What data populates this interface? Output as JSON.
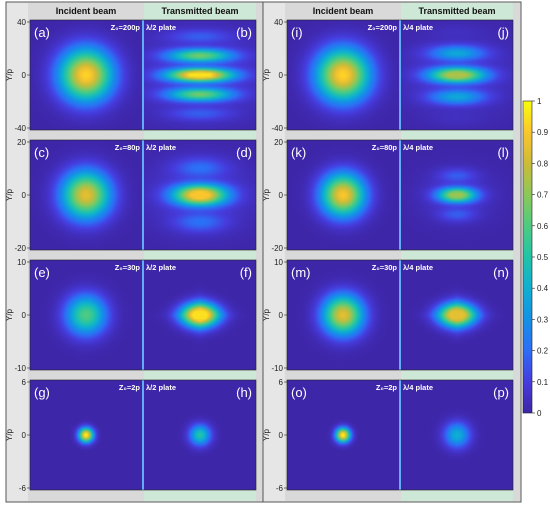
{
  "chart_data": {
    "type": "heatmap",
    "column_headers": [
      "Incident beam",
      "Transmitted beam",
      "Incident beam",
      "Transmitted beam"
    ],
    "ylabel": "Y/p",
    "colorbar": {
      "range": [
        0,
        1
      ],
      "ticks": [
        "0",
        "0.1",
        "0.2",
        "0.3",
        "0.4",
        "0.5",
        "0.6",
        "0.7",
        "0.8",
        "0.9",
        "1"
      ],
      "colormap": "parula"
    },
    "groups": [
      {
        "plate": "λ/2 plate",
        "rows": [
          {
            "z": "Z₀=200p",
            "plate_label": "λ/2 plate",
            "panels": [
              "(a)",
              "(b)"
            ],
            "y_ticks": [
              "40",
              "0",
              "-40"
            ],
            "y_range": [
              -40,
              40
            ],
            "incident": {
              "peak": 0.93,
              "width": 0.33
            },
            "transmitted": {
              "peak": 0.95,
              "pattern": "fringes",
              "width": 0.34,
              "lobes": 4
            }
          },
          {
            "z": "Z₀=80p",
            "plate_label": "λ/2 plate",
            "panels": [
              "(c)",
              "(d)"
            ],
            "y_ticks": [
              "20",
              "0",
              "-20"
            ],
            "y_range": [
              -20,
              20
            ],
            "incident": {
              "peak": 0.85,
              "width": 0.3
            },
            "transmitted": {
              "peak": 0.9,
              "pattern": "fringes",
              "width": 0.28,
              "lobes": 2
            }
          },
          {
            "z": "Z₀=30p",
            "plate_label": "λ/2 plate",
            "panels": [
              "(e)",
              "(f)"
            ],
            "y_ticks": [
              "10",
              "0",
              "-10"
            ],
            "y_range": [
              -15,
              15
            ],
            "incident": {
              "peak": 0.6,
              "width": 0.25
            },
            "transmitted": {
              "peak": 0.95,
              "pattern": "diamond",
              "width": 0.16
            }
          },
          {
            "z": "Z₀=2p",
            "plate_label": "λ/2 plate",
            "panels": [
              "(g)",
              "(h)"
            ],
            "y_ticks": [
              "6",
              "0",
              "-6"
            ],
            "y_range": [
              -6,
              6
            ],
            "incident": {
              "peak": 1.0,
              "width": 0.09
            },
            "transmitted": {
              "peak": 0.5,
              "pattern": "spot",
              "width": 0.13
            }
          }
        ]
      },
      {
        "plate": "λ/4 plate",
        "rows": [
          {
            "z": "Z₀=200p",
            "plate_label": "λ/4 plate",
            "panels": [
              "(i)",
              "(j)"
            ],
            "y_ticks": [
              "40",
              "0",
              "-40"
            ],
            "y_range": [
              -40,
              40
            ],
            "incident": {
              "peak": 0.93,
              "width": 0.33
            },
            "transmitted": {
              "peak": 0.75,
              "pattern": "fringes",
              "width": 0.3,
              "lobes": 3
            }
          },
          {
            "z": "Z₀=80p",
            "plate_label": "λ/4 plate",
            "panels": [
              "(k)",
              "(l)"
            ],
            "y_ticks": [
              "20",
              "0",
              "-20"
            ],
            "y_range": [
              -20,
              20
            ],
            "incident": {
              "peak": 0.9,
              "width": 0.27
            },
            "transmitted": {
              "peak": 0.72,
              "pattern": "fringes",
              "width": 0.2,
              "lobes": 2
            }
          },
          {
            "z": "Z₀=30p",
            "plate_label": "λ/4 plate",
            "panels": [
              "(m)",
              "(n)"
            ],
            "y_ticks": [
              "10",
              "0",
              "-10"
            ],
            "y_range": [
              -15,
              15
            ],
            "incident": {
              "peak": 0.85,
              "width": 0.25
            },
            "transmitted": {
              "peak": 0.85,
              "pattern": "diamond",
              "width": 0.16
            }
          },
          {
            "z": "Z₀=2p",
            "plate_label": "λ/4 plate",
            "panels": [
              "(o)",
              "(p)"
            ],
            "y_ticks": [
              "6",
              "0",
              "-6"
            ],
            "y_range": [
              -6,
              6
            ],
            "incident": {
              "peak": 1.0,
              "width": 0.09
            },
            "transmitted": {
              "peak": 0.4,
              "pattern": "spot",
              "width": 0.16
            }
          }
        ]
      }
    ]
  }
}
